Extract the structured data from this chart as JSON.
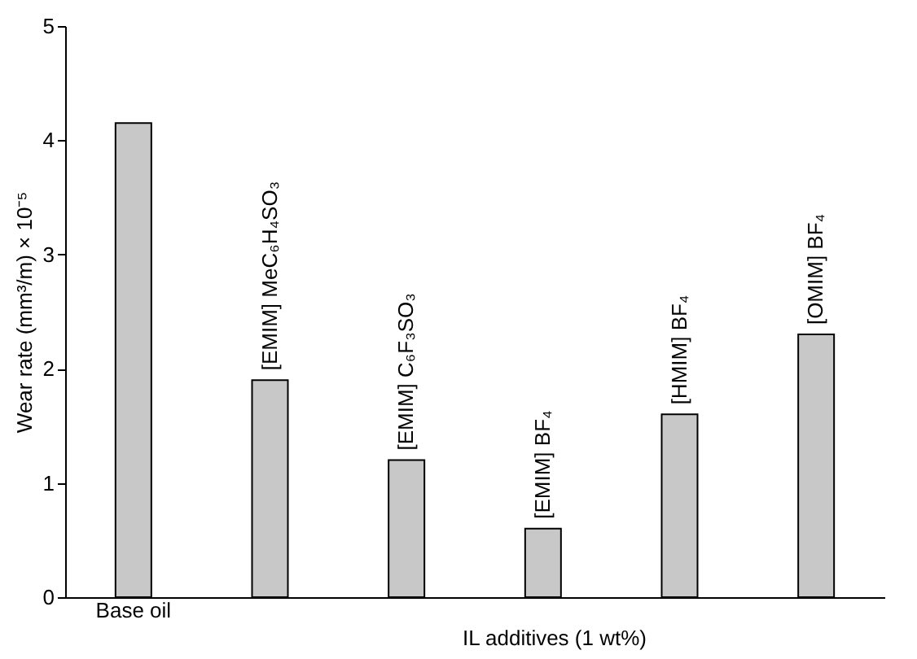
{
  "chart_data": {
    "type": "bar",
    "xlabel": "IL additives (1 wt%)",
    "ylabel": "Wear rate (mm³/m) × 10⁻⁵",
    "categories": [
      "Base oil",
      null,
      null,
      null,
      null,
      null
    ],
    "values": [
      4.15,
      1.9,
      1.2,
      0.6,
      1.6,
      2.3
    ],
    "color": "#c8c8c8",
    "ylim": [
      0,
      5
    ],
    "yticks": [
      0,
      1,
      2,
      3,
      4,
      5
    ],
    "grid": false,
    "annotations": [
      {
        "text": "[EMIM] MeC₆H₄SO₃",
        "y": 1.9
      },
      {
        "text": "[EMIM] C₆F₃SO₃",
        "y": 1.2
      },
      {
        "text": "[EMIM] BF₄",
        "y": 0.6
      },
      {
        "text": "[HMIM] BF₄",
        "y": 1.6
      },
      {
        "text": "[OMIM] BF₄",
        "y": 2.3
      }
    ]
  }
}
